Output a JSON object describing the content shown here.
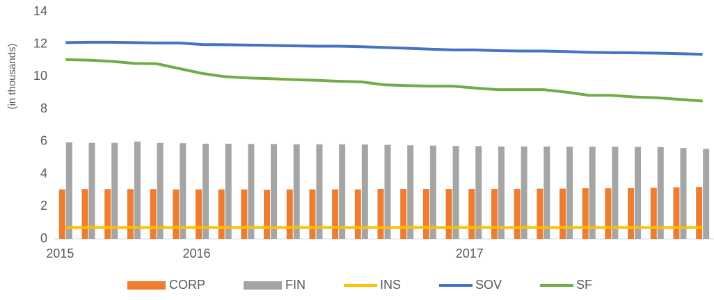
{
  "chart_data": {
    "type": "combo",
    "y_label": "(in thousands)",
    "categories": [
      "2015",
      null,
      null,
      null,
      null,
      null,
      "2016",
      null,
      null,
      null,
      null,
      null,
      null,
      null,
      null,
      null,
      null,
      null,
      "2017",
      null,
      null,
      null,
      null,
      null,
      null,
      null,
      null,
      null,
      null
    ],
    "ylim": [
      0,
      14
    ],
    "yticks": [
      0,
      2,
      4,
      6,
      8,
      10,
      12,
      14
    ],
    "grid": false,
    "legend": "bottom",
    "series": [
      {
        "name": "CORP",
        "type": "bar",
        "color": "#ed7d31",
        "values": [
          3.05,
          3.07,
          3.07,
          3.07,
          3.07,
          3.05,
          3.05,
          3.05,
          3.05,
          3.03,
          3.05,
          3.05,
          3.05,
          3.05,
          3.08,
          3.08,
          3.08,
          3.08,
          3.08,
          3.08,
          3.08,
          3.1,
          3.1,
          3.12,
          3.12,
          3.13,
          3.15,
          3.18,
          3.2
        ]
      },
      {
        "name": "FIN",
        "type": "bar",
        "color": "#a5a5a5",
        "values": [
          5.95,
          5.92,
          5.92,
          6.0,
          5.92,
          5.9,
          5.87,
          5.87,
          5.85,
          5.85,
          5.83,
          5.83,
          5.83,
          5.82,
          5.8,
          5.77,
          5.75,
          5.73,
          5.72,
          5.7,
          5.7,
          5.7,
          5.68,
          5.68,
          5.68,
          5.67,
          5.66,
          5.6,
          5.55
        ]
      },
      {
        "name": "INS",
        "type": "line",
        "color": "#ffc000",
        "values": [
          0.7,
          0.7,
          0.7,
          0.7,
          0.7,
          0.7,
          0.7,
          0.7,
          0.7,
          0.7,
          0.7,
          0.7,
          0.7,
          0.7,
          0.7,
          0.7,
          0.7,
          0.7,
          0.7,
          0.7,
          0.7,
          0.7,
          0.7,
          0.7,
          0.7,
          0.7,
          0.7,
          0.7,
          0.7
        ]
      },
      {
        "name": "SOV",
        "type": "line",
        "color": "#4472c4",
        "values": [
          12.1,
          12.12,
          12.12,
          12.1,
          12.08,
          12.08,
          11.98,
          11.97,
          11.95,
          11.93,
          11.9,
          11.88,
          11.88,
          11.85,
          11.8,
          11.75,
          11.7,
          11.65,
          11.65,
          11.6,
          11.58,
          11.58,
          11.55,
          11.5,
          11.48,
          11.47,
          11.45,
          11.42,
          11.38
        ]
      },
      {
        "name": "SF",
        "type": "line",
        "color": "#70ad47",
        "values": [
          11.05,
          11.02,
          10.95,
          10.82,
          10.8,
          10.5,
          10.2,
          10.0,
          9.92,
          9.88,
          9.82,
          9.78,
          9.72,
          9.68,
          9.5,
          9.45,
          9.42,
          9.42,
          9.3,
          9.2,
          9.2,
          9.2,
          9.05,
          8.85,
          8.85,
          8.75,
          8.7,
          8.6,
          8.5
        ]
      }
    ]
  }
}
